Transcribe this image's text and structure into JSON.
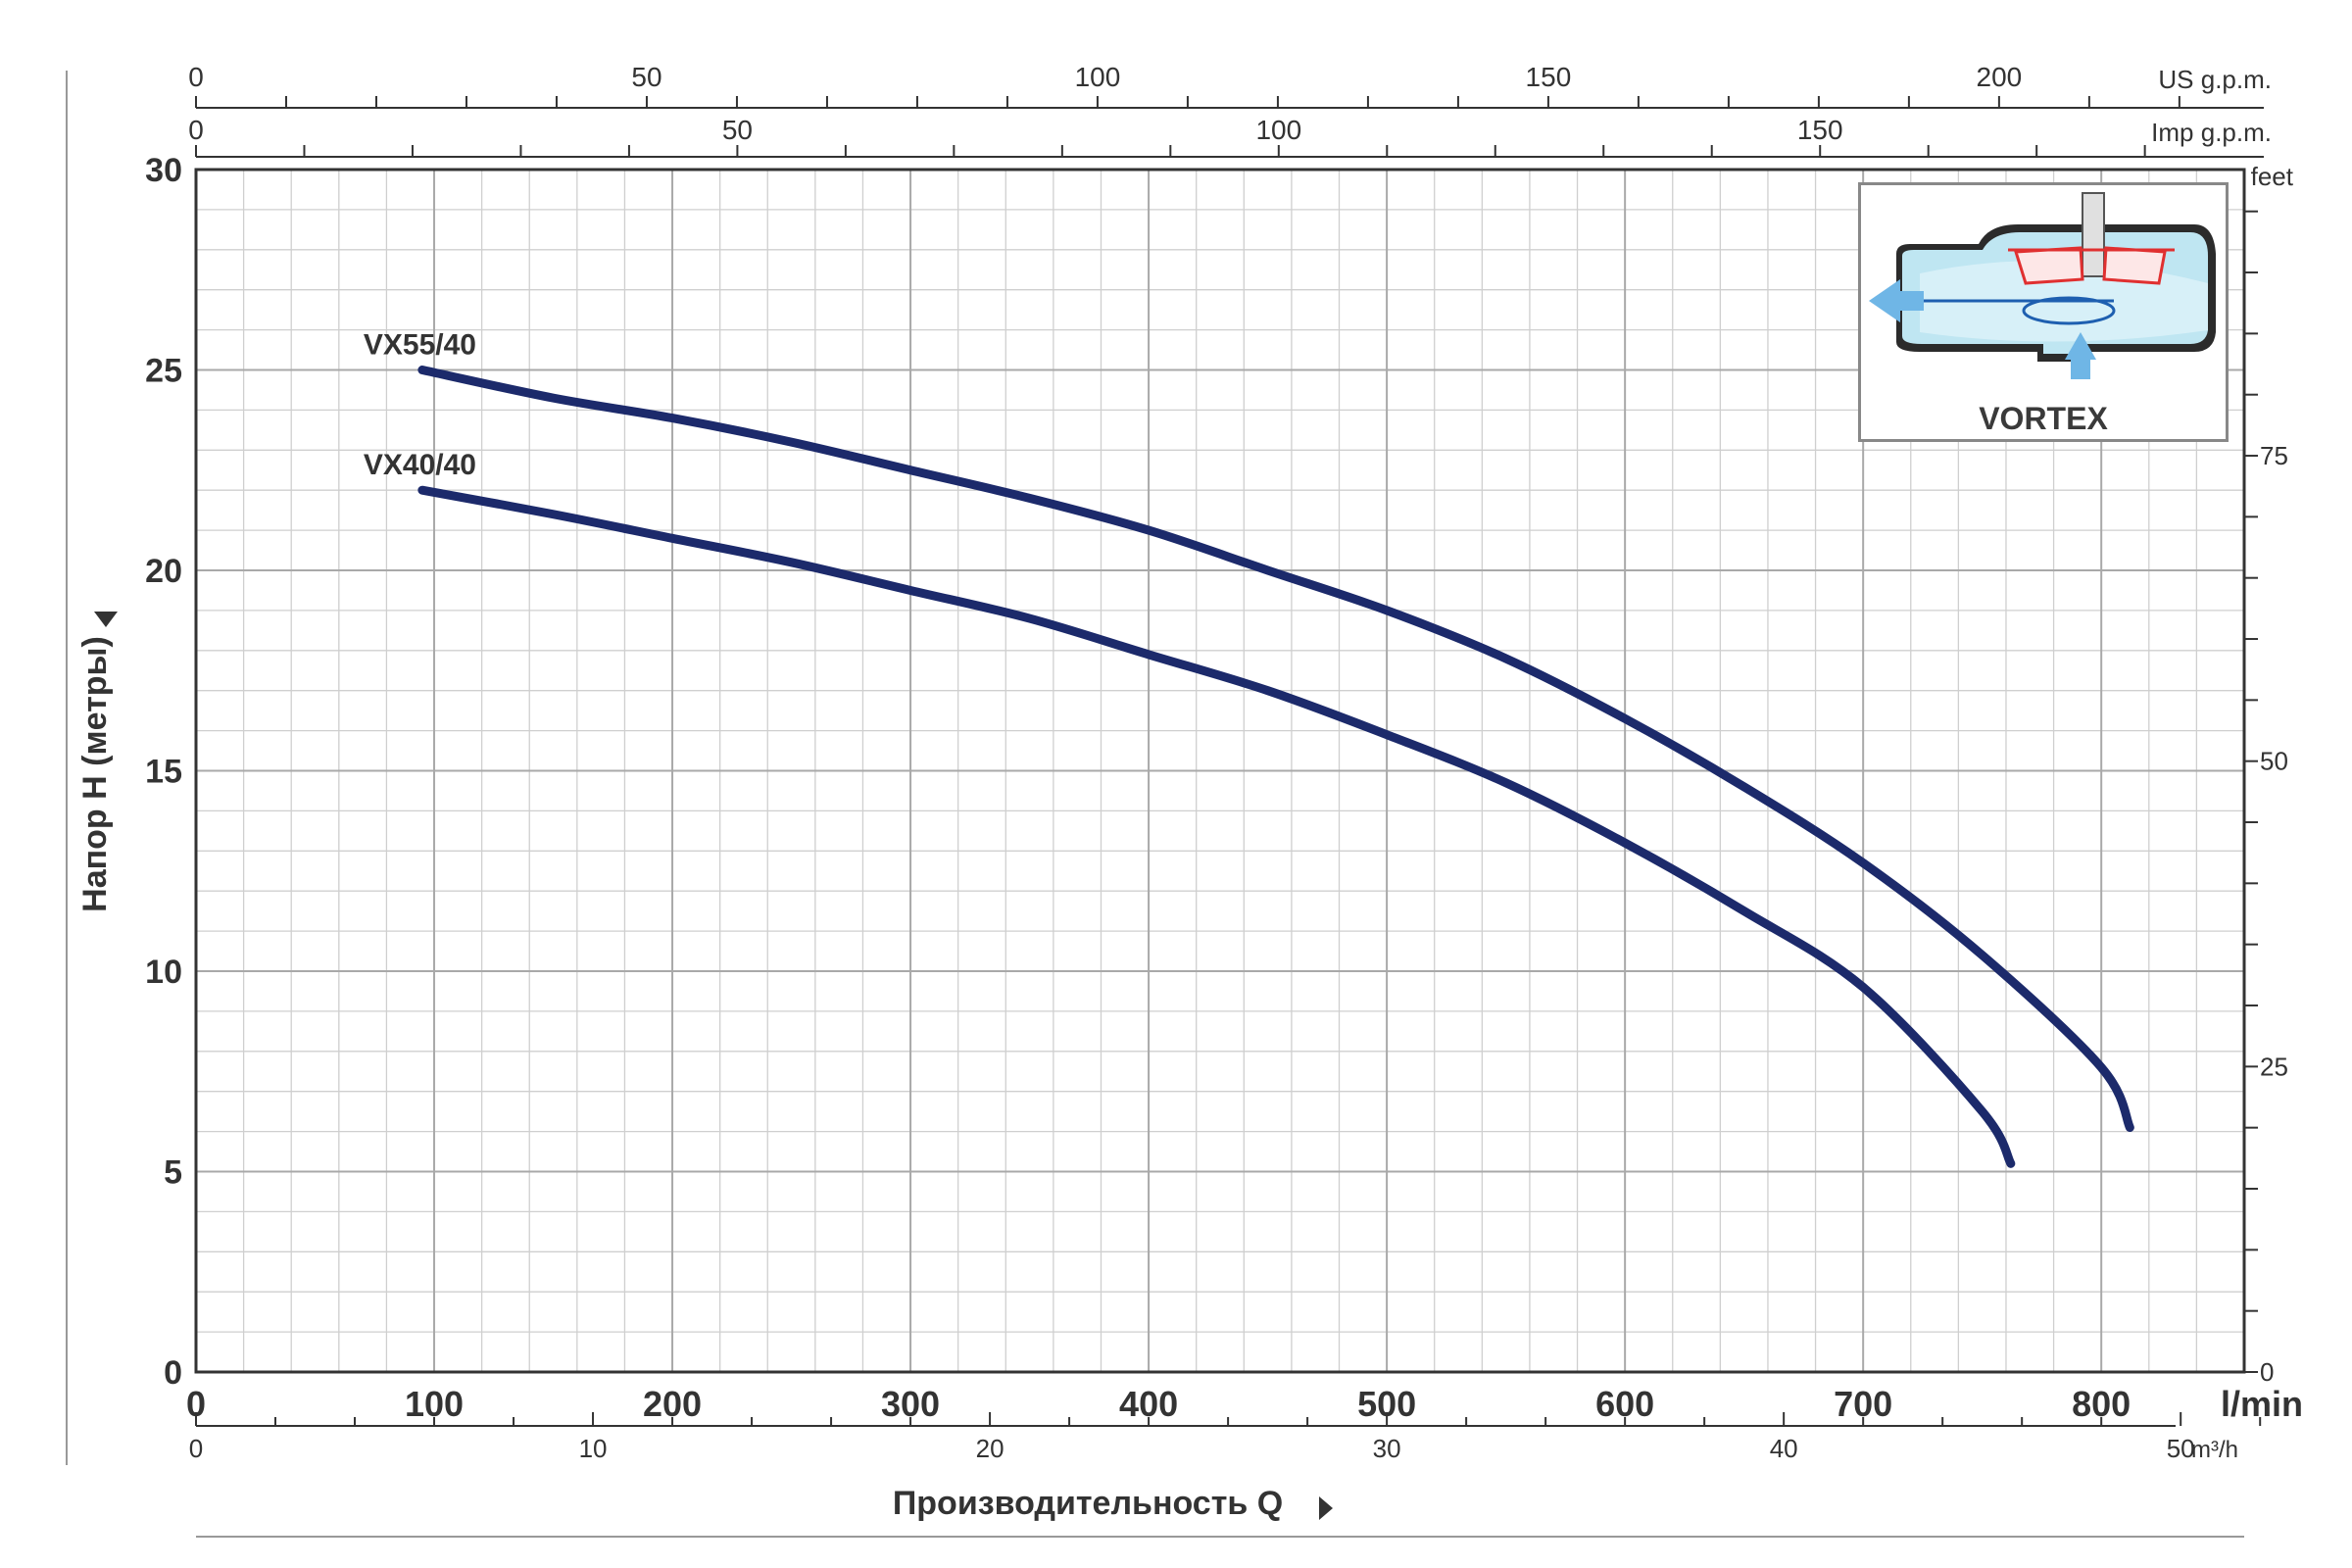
{
  "chart_data": {
    "type": "line",
    "xlabel": "Производительность Q",
    "ylabel": "Напор H (метры)",
    "xlim": [
      0,
      860
    ],
    "ylim": [
      0,
      30
    ],
    "x_unit": "l/min",
    "x_ticks": [
      0,
      100,
      200,
      300,
      400,
      500,
      600,
      700,
      800
    ],
    "y_ticks": [
      0,
      5,
      10,
      15,
      20,
      25,
      30
    ],
    "grid": true,
    "secondary_axes": {
      "us_gpm": {
        "label": "US g.p.m.",
        "ticks": [
          0,
          50,
          100,
          150,
          200
        ]
      },
      "imp_gpm": {
        "label": "Imp g.p.m.",
        "ticks": [
          0,
          50,
          100,
          150
        ]
      },
      "m3h": {
        "label": "m³/h",
        "ticks": [
          0,
          10,
          20,
          30,
          40,
          50
        ]
      },
      "feet": {
        "label": "feet",
        "ticks": [
          0,
          25,
          50,
          75
        ]
      }
    },
    "series": [
      {
        "name": "VX55/40",
        "color": "#1c2a6b",
        "x": [
          95,
          150,
          200,
          250,
          300,
          350,
          400,
          450,
          500,
          550,
          600,
          650,
          700,
          750,
          800,
          812
        ],
        "y": [
          25.0,
          24.3,
          23.8,
          23.2,
          22.5,
          21.8,
          21.0,
          20.0,
          19.0,
          17.8,
          16.3,
          14.6,
          12.7,
          10.4,
          7.6,
          6.1
        ]
      },
      {
        "name": "VX40/40",
        "color": "#1c2a6b",
        "x": [
          95,
          150,
          200,
          250,
          300,
          350,
          400,
          450,
          500,
          550,
          600,
          650,
          700,
          750,
          762
        ],
        "y": [
          22.0,
          21.4,
          20.8,
          20.2,
          19.5,
          18.8,
          17.9,
          17.0,
          15.9,
          14.7,
          13.2,
          11.5,
          9.6,
          6.5,
          5.2
        ]
      }
    ]
  },
  "inset": {
    "label": "VORTEX"
  }
}
